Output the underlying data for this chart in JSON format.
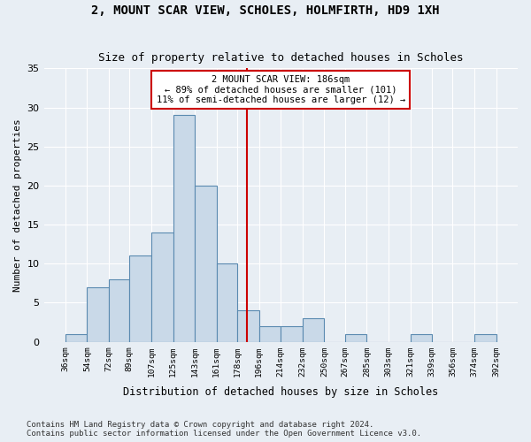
{
  "title": "2, MOUNT SCAR VIEW, SCHOLES, HOLMFIRTH, HD9 1XH",
  "subtitle": "Size of property relative to detached houses in Scholes",
  "xlabel": "Distribution of detached houses by size in Scholes",
  "ylabel": "Number of detached properties",
  "bar_values": [
    1,
    7,
    8,
    11,
    14,
    29,
    20,
    10,
    4,
    2,
    2,
    3,
    0,
    1,
    0,
    0,
    1,
    0,
    0,
    1
  ],
  "bin_labels": [
    "36sqm",
    "54sqm",
    "72sqm",
    "89sqm",
    "107sqm",
    "125sqm",
    "143sqm",
    "161sqm",
    "178sqm",
    "196sqm",
    "214sqm",
    "232sqm",
    "250sqm",
    "267sqm",
    "285sqm",
    "303sqm",
    "321sqm",
    "339sqm",
    "356sqm",
    "374sqm",
    "392sqm"
  ],
  "bin_edges": [
    36,
    54,
    72,
    89,
    107,
    125,
    143,
    161,
    178,
    196,
    214,
    232,
    250,
    267,
    285,
    303,
    321,
    339,
    356,
    374,
    392
  ],
  "bar_color": "#c9d9e8",
  "bar_edgecolor": "#5a8ab0",
  "vline_x": 186,
  "vline_color": "#cc0000",
  "annotation_text": "2 MOUNT SCAR VIEW: 186sqm\n← 89% of detached houses are smaller (101)\n11% of semi-detached houses are larger (12) →",
  "annotation_box_color": "#ffffff",
  "annotation_box_edgecolor": "#cc0000",
  "ylim": [
    0,
    35
  ],
  "yticks": [
    0,
    5,
    10,
    15,
    20,
    25,
    30,
    35
  ],
  "background_color": "#e8eef4",
  "grid_color": "#ffffff",
  "footer_line1": "Contains HM Land Registry data © Crown copyright and database right 2024.",
  "footer_line2": "Contains public sector information licensed under the Open Government Licence v3.0."
}
